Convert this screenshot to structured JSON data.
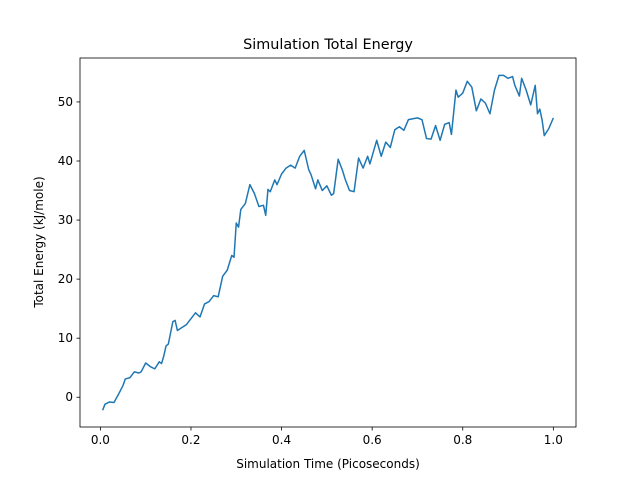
{
  "chart_data": {
    "type": "line",
    "title": "Simulation Total Energy",
    "x_label": "Simulation Time (Picoseconds)",
    "y_label": "Total Energy (kJ/mole)",
    "x": [
      0.005,
      0.01,
      0.02,
      0.03,
      0.04,
      0.05,
      0.055,
      0.065,
      0.075,
      0.085,
      0.09,
      0.1,
      0.11,
      0.12,
      0.13,
      0.135,
      0.14,
      0.145,
      0.15,
      0.16,
      0.165,
      0.17,
      0.18,
      0.19,
      0.2,
      0.21,
      0.22,
      0.23,
      0.24,
      0.25,
      0.26,
      0.27,
      0.28,
      0.29,
      0.295,
      0.3,
      0.305,
      0.31,
      0.32,
      0.33,
      0.34,
      0.35,
      0.36,
      0.365,
      0.37,
      0.375,
      0.385,
      0.39,
      0.4,
      0.41,
      0.42,
      0.43,
      0.44,
      0.45,
      0.46,
      0.465,
      0.475,
      0.48,
      0.49,
      0.5,
      0.51,
      0.515,
      0.525,
      0.535,
      0.54,
      0.55,
      0.56,
      0.57,
      0.58,
      0.59,
      0.595,
      0.61,
      0.62,
      0.63,
      0.64,
      0.65,
      0.66,
      0.67,
      0.68,
      0.7,
      0.71,
      0.72,
      0.73,
      0.74,
      0.75,
      0.76,
      0.77,
      0.775,
      0.785,
      0.79,
      0.8,
      0.81,
      0.82,
      0.83,
      0.84,
      0.85,
      0.86,
      0.87,
      0.88,
      0.89,
      0.9,
      0.91,
      0.915,
      0.925,
      0.93,
      0.94,
      0.95,
      0.96,
      0.965,
      0.97,
      0.975,
      0.98,
      0.99,
      1.0
    ],
    "series": [
      {
        "name": "Total Energy",
        "color": "#1f77b4",
        "values": [
          -2.2,
          -1.2,
          -0.8,
          -0.9,
          0.5,
          2.0,
          3.1,
          3.3,
          4.3,
          4.1,
          4.3,
          5.8,
          5.2,
          4.8,
          6.0,
          5.7,
          7.0,
          8.7,
          9.0,
          12.8,
          13.0,
          11.3,
          11.8,
          12.3,
          13.3,
          14.3,
          13.6,
          15.8,
          16.2,
          17.2,
          17.0,
          20.5,
          21.5,
          24.0,
          23.7,
          29.5,
          28.8,
          31.8,
          32.8,
          36.0,
          34.5,
          32.3,
          32.5,
          30.8,
          35.2,
          34.8,
          36.8,
          36.0,
          37.8,
          38.8,
          39.3,
          38.8,
          40.8,
          41.8,
          38.5,
          37.7,
          35.3,
          36.8,
          35.0,
          35.8,
          34.2,
          34.5,
          40.3,
          38.3,
          37.0,
          35.0,
          34.8,
          40.5,
          38.8,
          40.8,
          39.5,
          43.5,
          40.8,
          43.2,
          42.3,
          45.3,
          45.8,
          45.2,
          47.0,
          47.3,
          47.0,
          43.8,
          43.7,
          46.0,
          43.5,
          46.2,
          46.5,
          44.5,
          52.0,
          50.8,
          51.5,
          53.5,
          52.5,
          48.5,
          50.5,
          49.8,
          48.0,
          52.0,
          54.5,
          54.5,
          54.0,
          54.3,
          52.8,
          51.0,
          54.0,
          52.0,
          49.5,
          52.8,
          48.0,
          48.8,
          47.0,
          44.3,
          45.5,
          47.3
        ]
      }
    ],
    "xlim": [
      -0.045,
      1.05
    ],
    "ylim": [
      -5.04,
      57.44
    ],
    "xticks": [
      {
        "value": 0,
        "label": "0.0"
      },
      0.2,
      0.4,
      0.6,
      0.8,
      {
        "value": 1,
        "label": "1.0"
      }
    ],
    "yticks": [
      0,
      10,
      20,
      30,
      40,
      50
    ]
  }
}
